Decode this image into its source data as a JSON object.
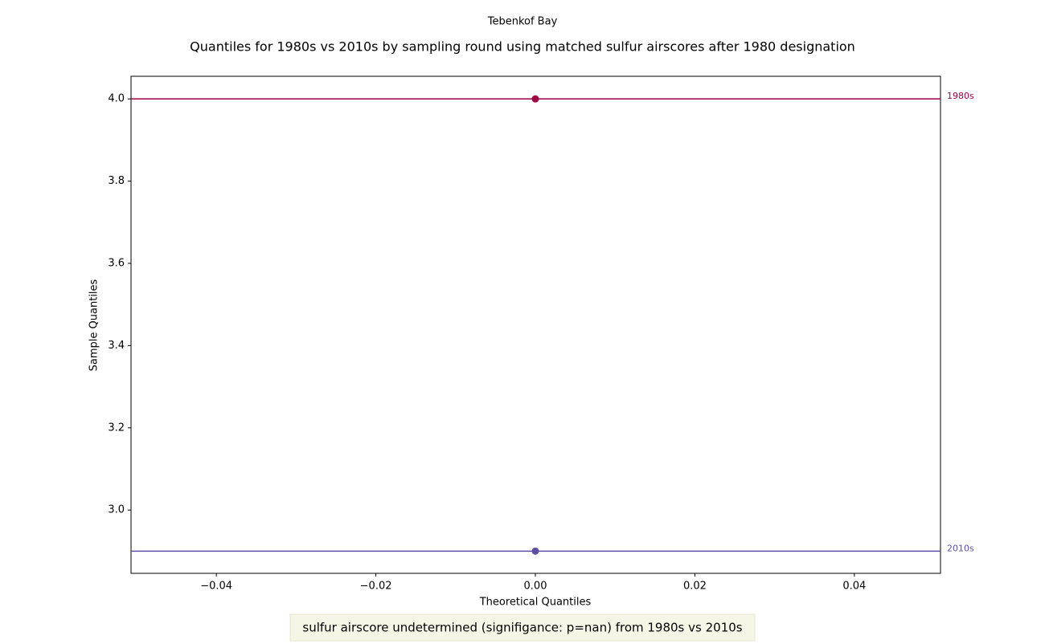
{
  "chart_data": {
    "type": "scatter",
    "suptitle": "Tebenkof Bay",
    "title": "Quantiles for 1980s vs 2010s by sampling round using matched sulfur airscores after 1980 designation",
    "xlabel": "Theoretical Quantiles",
    "ylabel": "Sample Quantiles",
    "annotation": "sulfur airscore undetermined (signifigance: p=nan) from 1980s vs 2010s",
    "series": [
      {
        "name": "1980s",
        "color": "#9e0142",
        "x": [
          0
        ],
        "values": [
          4.0
        ]
      },
      {
        "name": "2010s",
        "color": "#5e4fa2",
        "x": [
          0
        ],
        "values": [
          2.9
        ]
      }
    ],
    "xlim": [
      -0.0507,
      0.0508
    ],
    "ylim": [
      2.846,
      4.055
    ],
    "xticks": [
      {
        "value": -0.04,
        "label": "−0.04"
      },
      {
        "value": -0.02,
        "label": "−0.02"
      },
      {
        "value": 0,
        "label": "0.00"
      },
      0.02,
      0.04
    ],
    "yticks": [
      {
        "value": 3.0,
        "label": "3.0"
      },
      3.2,
      3.4,
      3.6,
      3.8,
      {
        "value": 4.0,
        "label": "4.0"
      }
    ],
    "grid": false
  }
}
